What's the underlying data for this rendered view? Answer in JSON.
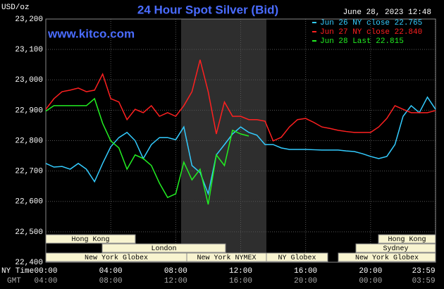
{
  "chart_data": {
    "type": "line",
    "title": "24 Hour Spot Silver (Bid)",
    "subtitle": "June 28, 2023 12:48",
    "y_label": "USD/oz",
    "watermark": "www.kitco.com",
    "x_row_labels": [
      "NY Time",
      "GMT"
    ],
    "x": [
      0,
      0.5,
      1,
      1.5,
      2,
      2.5,
      3,
      3.5,
      4,
      4.5,
      5,
      5.5,
      6,
      6.5,
      7,
      7.5,
      8,
      8.5,
      9,
      9.5,
      10,
      10.5,
      11,
      11.5,
      12,
      12.5,
      13,
      13.5,
      14,
      14.5,
      15,
      15.5,
      16,
      16.5,
      17,
      17.5,
      18,
      18.5,
      19,
      19.5,
      20,
      20.5,
      21,
      21.5,
      22,
      22.5,
      23,
      23.5,
      24
    ],
    "series": [
      {
        "name": "Jun 26 NY close 22.765",
        "color": "#33ccff",
        "values": [
          22.725,
          22.713,
          22.715,
          22.706,
          22.725,
          22.706,
          22.665,
          22.725,
          22.78,
          22.81,
          22.827,
          22.8,
          22.741,
          22.787,
          22.81,
          22.81,
          22.803,
          22.845,
          22.718,
          22.695,
          22.625,
          22.753,
          22.787,
          22.822,
          22.845,
          22.827,
          22.818,
          22.787,
          22.787,
          22.776,
          22.771,
          22.771,
          22.771,
          22.77,
          22.769,
          22.769,
          22.769,
          22.766,
          22.764,
          22.757,
          22.748,
          22.741,
          22.748,
          22.787,
          22.88,
          22.915,
          22.892,
          22.943,
          22.903
        ]
      },
      {
        "name": "Jun 27 NY close 22.840",
        "color": "#ff2020",
        "values": [
          22.903,
          22.938,
          22.961,
          22.966,
          22.973,
          22.961,
          22.966,
          23.019,
          22.938,
          22.927,
          22.869,
          22.903,
          22.892,
          22.915,
          22.88,
          22.892,
          22.88,
          22.915,
          22.961,
          23.066,
          22.961,
          22.822,
          22.927,
          22.88,
          22.88,
          22.869,
          22.869,
          22.864,
          22.799,
          22.811,
          22.845,
          22.869,
          22.873,
          22.86,
          22.845,
          22.84,
          22.834,
          22.83,
          22.827,
          22.827,
          22.827,
          22.845,
          22.873,
          22.915,
          22.903,
          22.892,
          22.892,
          22.892,
          22.899
        ]
      },
      {
        "name": "Jun 28 Last 22.815",
        "color": "#22ee22",
        "values": [
          22.897,
          22.915,
          22.915,
          22.915,
          22.915,
          22.915,
          22.938,
          22.857,
          22.799,
          22.776,
          22.706,
          22.753,
          22.741,
          22.718,
          22.66,
          22.613,
          22.625,
          22.729,
          22.671,
          22.706,
          22.59,
          22.753,
          22.718,
          22.834,
          22.822,
          22.815,
          null,
          null,
          null,
          null,
          null,
          null,
          null,
          null,
          null,
          null,
          null,
          null,
          null,
          null,
          null,
          null,
          null,
          null,
          null,
          null,
          null,
          null,
          null
        ]
      }
    ],
    "xlim": [
      0,
      24
    ],
    "xticks": [
      {
        "value": 0,
        "label": "00:00"
      },
      {
        "value": 4,
        "label": "04:00"
      },
      {
        "value": 8,
        "label": "08:00"
      },
      {
        "value": 12,
        "label": "12:00"
      },
      {
        "value": 16,
        "label": "16:00"
      },
      {
        "value": 20,
        "label": "20:00"
      },
      {
        "value": 23.983,
        "label": "23:59"
      }
    ],
    "gmt_labels": [
      "04:00",
      "08:00",
      "12:00",
      "16:00",
      "20:00",
      "00:00",
      "03:59"
    ],
    "ylim": [
      22.4,
      23.2
    ],
    "yticks": [
      {
        "value": 22.4,
        "label": "22,400"
      },
      {
        "value": 22.5,
        "label": "22,500"
      },
      {
        "value": 22.6,
        "label": "22,600"
      },
      {
        "value": 22.7,
        "label": "22,700"
      },
      {
        "value": 22.8,
        "label": "22,800"
      },
      {
        "value": 22.9,
        "label": "22,900"
      },
      {
        "value": 23.0,
        "label": "23,000"
      },
      {
        "value": 23.1,
        "label": "23,100"
      },
      {
        "value": 23.2,
        "label": "23,200"
      }
    ],
    "grid": true,
    "sessions": [
      "Hong Kong",
      "London",
      "New York Globex",
      "New York NYMEX",
      "NY Globex",
      "Hong Kong",
      "Sydney",
      "New York Globex"
    ]
  }
}
